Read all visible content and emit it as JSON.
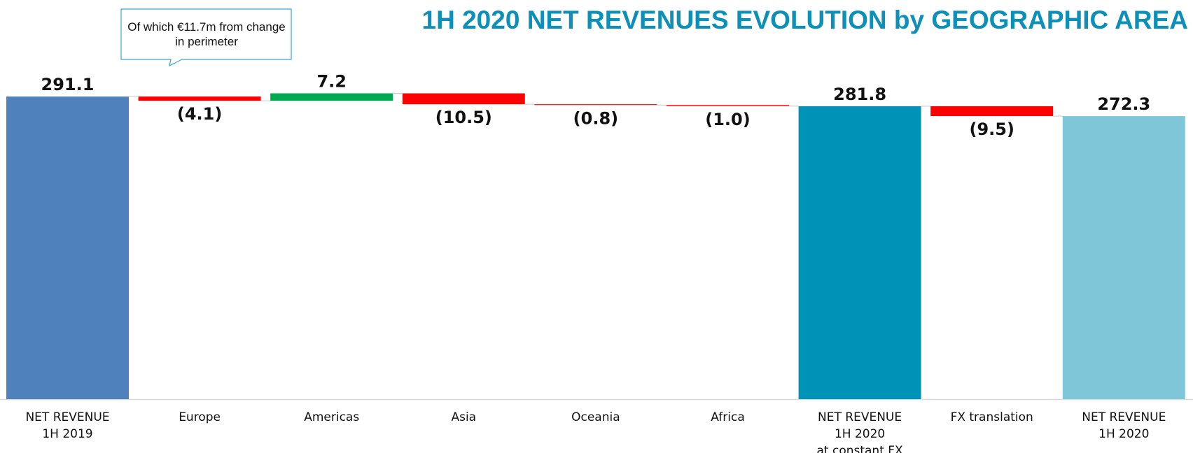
{
  "chart_data": {
    "type": "waterfall",
    "title": "1H 2020 NET REVENUES EVOLUTION by GEOGRAPHIC AREA",
    "annotation": "Of which €11.7m from change in perimeter",
    "categories": [
      [
        "NET REVENUE",
        "1H 2019"
      ],
      [
        "Europe"
      ],
      [
        "Americas"
      ],
      [
        "Asia"
      ],
      [
        "Oceania"
      ],
      [
        "Africa"
      ],
      [
        "NET REVENUE",
        "1H 2020",
        "at constant FX"
      ],
      [
        "FX translation"
      ],
      [
        "NET REVENUE",
        "1H 2020"
      ]
    ],
    "values": [
      291.1,
      -4.1,
      7.2,
      -10.5,
      -0.8,
      -1.0,
      281.8,
      -9.5,
      272.3
    ],
    "value_labels": [
      "291.1",
      "(4.1)",
      "7.2",
      "(10.5)",
      "(0.8)",
      "(1.0)",
      "281.8",
      "(9.5)",
      "272.3"
    ],
    "totals": [
      true,
      false,
      false,
      false,
      false,
      false,
      true,
      false,
      true
    ],
    "colors": [
      "#4f81bd",
      "#ff0000",
      "#00a84f",
      "#ff0000",
      "#ff0000",
      "#ff0000",
      "#0093b8",
      "#ff0000",
      "#7fc6d8"
    ],
    "ylim": [
      0,
      310
    ]
  }
}
